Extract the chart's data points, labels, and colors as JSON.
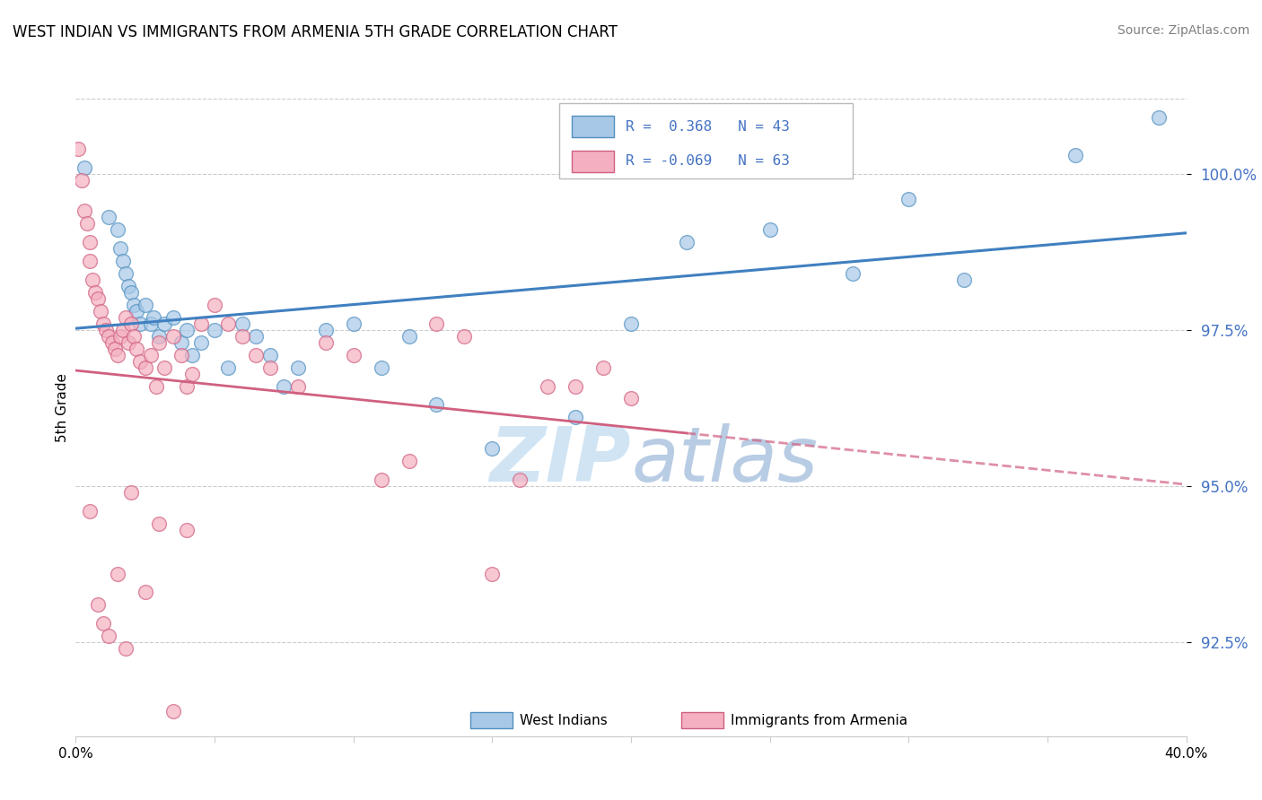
{
  "title": "WEST INDIAN VS IMMIGRANTS FROM ARMENIA 5TH GRADE CORRELATION CHART",
  "source": "Source: ZipAtlas.com",
  "ylabel": "5th Grade",
  "yticks": [
    92.5,
    95.0,
    97.5,
    100.0
  ],
  "ytick_labels": [
    "92.5%",
    "95.0%",
    "97.5%",
    "100.0%"
  ],
  "xmin": 0.0,
  "xmax": 40.0,
  "ymin": 91.0,
  "ymax": 101.5,
  "legend_r1": "R =  0.368",
  "legend_n1": "N = 43",
  "legend_r2": "R = -0.069",
  "legend_n2": "N = 63",
  "label1": "West Indians",
  "label2": "Immigrants from Armenia",
  "color1": "#a8c8e8",
  "color2": "#f4b0c0",
  "edge_color1": "#5090c0",
  "edge_color2": "#d06080",
  "line_color1": "#4080c0",
  "line_color2": "#d06080",
  "tick_color": "#4472c4",
  "watermark_color": "#d0e4f4",
  "blue_scatter": [
    [
      0.3,
      100.1
    ],
    [
      1.2,
      99.3
    ],
    [
      1.5,
      99.1
    ],
    [
      1.6,
      98.8
    ],
    [
      1.7,
      98.6
    ],
    [
      1.8,
      98.4
    ],
    [
      1.9,
      98.2
    ],
    [
      2.0,
      98.1
    ],
    [
      2.1,
      97.9
    ],
    [
      2.2,
      97.8
    ],
    [
      2.3,
      97.6
    ],
    [
      2.5,
      97.9
    ],
    [
      2.7,
      97.6
    ],
    [
      2.8,
      97.7
    ],
    [
      3.0,
      97.4
    ],
    [
      3.2,
      97.6
    ],
    [
      3.5,
      97.7
    ],
    [
      3.8,
      97.3
    ],
    [
      4.0,
      97.5
    ],
    [
      4.2,
      97.1
    ],
    [
      4.5,
      97.3
    ],
    [
      5.0,
      97.5
    ],
    [
      5.5,
      96.9
    ],
    [
      6.0,
      97.6
    ],
    [
      6.5,
      97.4
    ],
    [
      7.0,
      97.1
    ],
    [
      7.5,
      96.6
    ],
    [
      8.0,
      96.9
    ],
    [
      9.0,
      97.5
    ],
    [
      10.0,
      97.6
    ],
    [
      11.0,
      96.9
    ],
    [
      12.0,
      97.4
    ],
    [
      13.0,
      96.3
    ],
    [
      15.0,
      95.6
    ],
    [
      18.0,
      96.1
    ],
    [
      20.0,
      97.6
    ],
    [
      22.0,
      98.9
    ],
    [
      25.0,
      99.1
    ],
    [
      28.0,
      98.4
    ],
    [
      30.0,
      99.6
    ],
    [
      32.0,
      98.3
    ],
    [
      36.0,
      100.3
    ],
    [
      39.0,
      100.9
    ]
  ],
  "pink_scatter": [
    [
      0.1,
      100.4
    ],
    [
      0.2,
      99.9
    ],
    [
      0.3,
      99.4
    ],
    [
      0.4,
      99.2
    ],
    [
      0.5,
      98.9
    ],
    [
      0.5,
      98.6
    ],
    [
      0.6,
      98.3
    ],
    [
      0.7,
      98.1
    ],
    [
      0.8,
      98.0
    ],
    [
      0.9,
      97.8
    ],
    [
      1.0,
      97.6
    ],
    [
      1.1,
      97.5
    ],
    [
      1.2,
      97.4
    ],
    [
      1.3,
      97.3
    ],
    [
      1.4,
      97.2
    ],
    [
      1.5,
      97.1
    ],
    [
      1.6,
      97.4
    ],
    [
      1.7,
      97.5
    ],
    [
      1.8,
      97.7
    ],
    [
      1.9,
      97.3
    ],
    [
      2.0,
      97.6
    ],
    [
      2.1,
      97.4
    ],
    [
      2.2,
      97.2
    ],
    [
      2.3,
      97.0
    ],
    [
      2.5,
      96.9
    ],
    [
      2.7,
      97.1
    ],
    [
      2.9,
      96.6
    ],
    [
      3.0,
      97.3
    ],
    [
      3.2,
      96.9
    ],
    [
      3.5,
      97.4
    ],
    [
      3.8,
      97.1
    ],
    [
      4.0,
      96.6
    ],
    [
      4.2,
      96.8
    ],
    [
      4.5,
      97.6
    ],
    [
      5.0,
      97.9
    ],
    [
      5.5,
      97.6
    ],
    [
      6.0,
      97.4
    ],
    [
      6.5,
      97.1
    ],
    [
      7.0,
      96.9
    ],
    [
      8.0,
      96.6
    ],
    [
      9.0,
      97.3
    ],
    [
      10.0,
      97.1
    ],
    [
      11.0,
      95.1
    ],
    [
      12.0,
      95.4
    ],
    [
      13.0,
      97.6
    ],
    [
      14.0,
      97.4
    ],
    [
      15.0,
      93.6
    ],
    [
      16.0,
      95.1
    ],
    [
      17.0,
      96.6
    ],
    [
      18.0,
      96.6
    ],
    [
      19.0,
      96.9
    ],
    [
      20.0,
      96.4
    ],
    [
      2.0,
      94.9
    ],
    [
      3.0,
      94.4
    ],
    [
      1.5,
      93.6
    ],
    [
      2.5,
      93.3
    ],
    [
      1.0,
      92.8
    ],
    [
      1.8,
      92.4
    ],
    [
      0.5,
      94.6
    ],
    [
      0.8,
      93.1
    ],
    [
      1.2,
      92.6
    ],
    [
      4.0,
      94.3
    ],
    [
      3.5,
      91.4
    ]
  ]
}
